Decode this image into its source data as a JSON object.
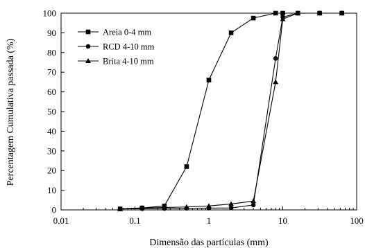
{
  "chart_data": {
    "type": "line",
    "title": "",
    "xlabel": "Dimensão das partículas (mm)",
    "ylabel": "Percentagem Cumulativa passada (%)",
    "xscale": "log",
    "xlim": [
      0.01,
      100
    ],
    "ylim": [
      0,
      100
    ],
    "grid": false,
    "legend": "top-left",
    "x_ticks": [
      "0.01",
      "0.1",
      "1",
      "10",
      "100"
    ],
    "y_ticks": [
      "0",
      "10",
      "20",
      "30",
      "40",
      "50",
      "60",
      "70",
      "80",
      "90",
      "100"
    ],
    "series": [
      {
        "name": "Areia 0-4 mm",
        "marker": "square",
        "x": [
          0.063,
          0.125,
          0.25,
          0.5,
          1,
          2,
          4,
          8,
          10,
          16,
          31.5,
          63
        ],
        "y": [
          0.5,
          1,
          2,
          22,
          66,
          90,
          97.5,
          100,
          100,
          100,
          100,
          100
        ]
      },
      {
        "name": "RCD 4-10 mm",
        "marker": "circle",
        "x": [
          0.063,
          0.125,
          0.25,
          0.5,
          1,
          2,
          4,
          8,
          10,
          16,
          31.5,
          63
        ],
        "y": [
          0.5,
          0.6,
          0.7,
          0.8,
          0.9,
          1,
          2.5,
          77,
          98,
          100,
          100,
          100
        ]
      },
      {
        "name": "Brita 4-10 mm",
        "marker": "triangle",
        "x": [
          0.063,
          0.125,
          0.25,
          0.5,
          1,
          2,
          4,
          8,
          10,
          16,
          31.5,
          63
        ],
        "y": [
          0.5,
          1,
          1.2,
          1.5,
          2,
          3,
          4.5,
          65,
          97,
          100,
          100,
          100
        ]
      }
    ]
  }
}
